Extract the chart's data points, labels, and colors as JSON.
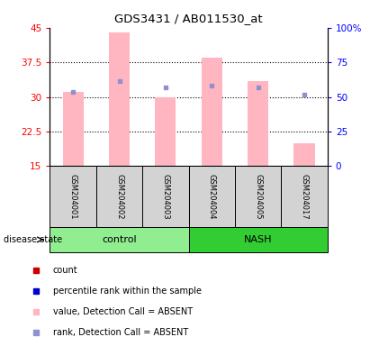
{
  "title": "GDS3431 / AB011530_at",
  "samples": [
    "GSM204001",
    "GSM204002",
    "GSM204003",
    "GSM204004",
    "GSM204005",
    "GSM204017"
  ],
  "group_colors": {
    "control": "#90EE90",
    "NASH": "#32CD32"
  },
  "group_spans": [
    {
      "name": "control",
      "start": 0,
      "end": 2,
      "color": "#90EE90"
    },
    {
      "name": "NASH",
      "start": 3,
      "end": 5,
      "color": "#32CD32"
    }
  ],
  "bar_values": [
    31.0,
    44.0,
    30.0,
    38.5,
    33.5,
    20.0
  ],
  "rank_values": [
    31.0,
    33.5,
    32.0,
    32.5,
    32.0,
    30.5
  ],
  "ylim_left": [
    15,
    45
  ],
  "ylim_right": [
    0,
    100
  ],
  "yticks_left": [
    15,
    22.5,
    30,
    37.5,
    45
  ],
  "yticks_right": [
    0,
    25,
    50,
    75,
    100
  ],
  "ytick_labels_left": [
    "15",
    "22.5",
    "30",
    "37.5",
    "45"
  ],
  "ytick_labels_right": [
    "0",
    "25",
    "50",
    "75",
    "100%"
  ],
  "bar_color": "#FFB6C1",
  "rank_dot_color": "#9090CC",
  "bar_bottom": 15,
  "legend_items": [
    {
      "color": "#CC0000",
      "label": "count",
      "marker": "s"
    },
    {
      "color": "#0000CC",
      "label": "percentile rank within the sample",
      "marker": "s"
    },
    {
      "color": "#FFB6C1",
      "label": "value, Detection Call = ABSENT",
      "marker": "s"
    },
    {
      "color": "#9090CC",
      "label": "rank, Detection Call = ABSENT",
      "marker": "s"
    }
  ],
  "disease_state_label": "disease state",
  "background_color": "#ffffff"
}
